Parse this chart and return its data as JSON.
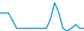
{
  "x": [
    0,
    1,
    2,
    3,
    4,
    5,
    6,
    7,
    8,
    9,
    10,
    11,
    12,
    13,
    14,
    15,
    16,
    17,
    18,
    19,
    20
  ],
  "y": [
    22,
    22,
    22,
    16,
    10,
    10,
    10,
    10,
    10,
    10,
    10,
    10,
    17,
    30,
    22,
    10,
    8,
    10,
    13,
    10,
    10
  ],
  "line_color": "#1b9fd5",
  "linewidth": 1.3,
  "background_color": "#ffffff",
  "ylim": [
    8,
    32
  ],
  "xlim": [
    0,
    20
  ]
}
